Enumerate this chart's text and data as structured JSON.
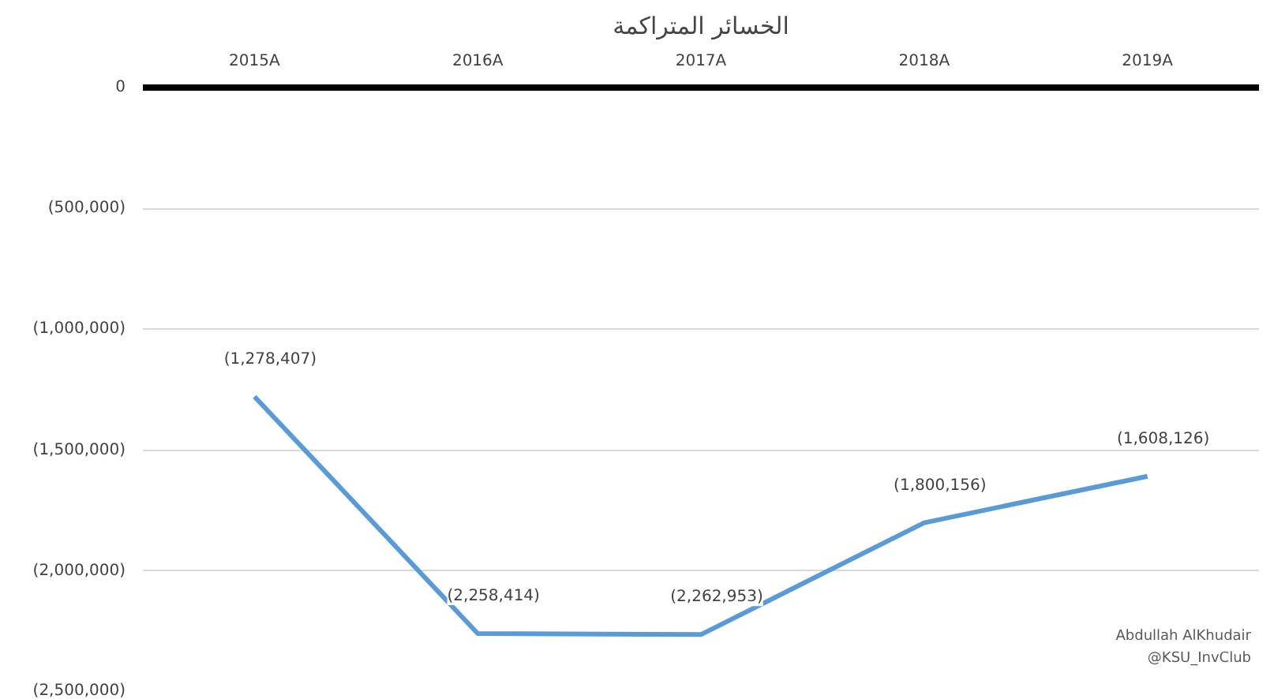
{
  "chart_data": {
    "type": "line",
    "title": "الخسائر المتراكمة",
    "categories": [
      "2015A",
      "2016A",
      "2017A",
      "2018A",
      "2019A"
    ],
    "series": [
      {
        "color": "#5b9bd5",
        "values": [
          -1278407,
          -2258414,
          -2262953,
          -1800156,
          -1608126
        ],
        "value_labels": [
          "(1,278,407)",
          "(2,258,414)",
          "(2,262,953)",
          "(1,800,156)",
          "(1,608,126)"
        ]
      }
    ],
    "ylim": [
      -2500000,
      0
    ],
    "yticks": [
      0,
      {
        "value": -500000,
        "label": "(500,000)"
      },
      {
        "value": -1000000,
        "label": "(1,000,000)"
      },
      {
        "value": -1500000,
        "label": "(1,500,000)"
      },
      {
        "value": -2000000,
        "label": "(2,000,000)"
      },
      {
        "value": -2500000,
        "label": "(2,500,000)"
      }
    ],
    "grid": "y",
    "marker": "none",
    "line_style": "solid",
    "annotations": [
      "Abdullah AlKhudair",
      "@KSU_InvClub"
    ]
  }
}
